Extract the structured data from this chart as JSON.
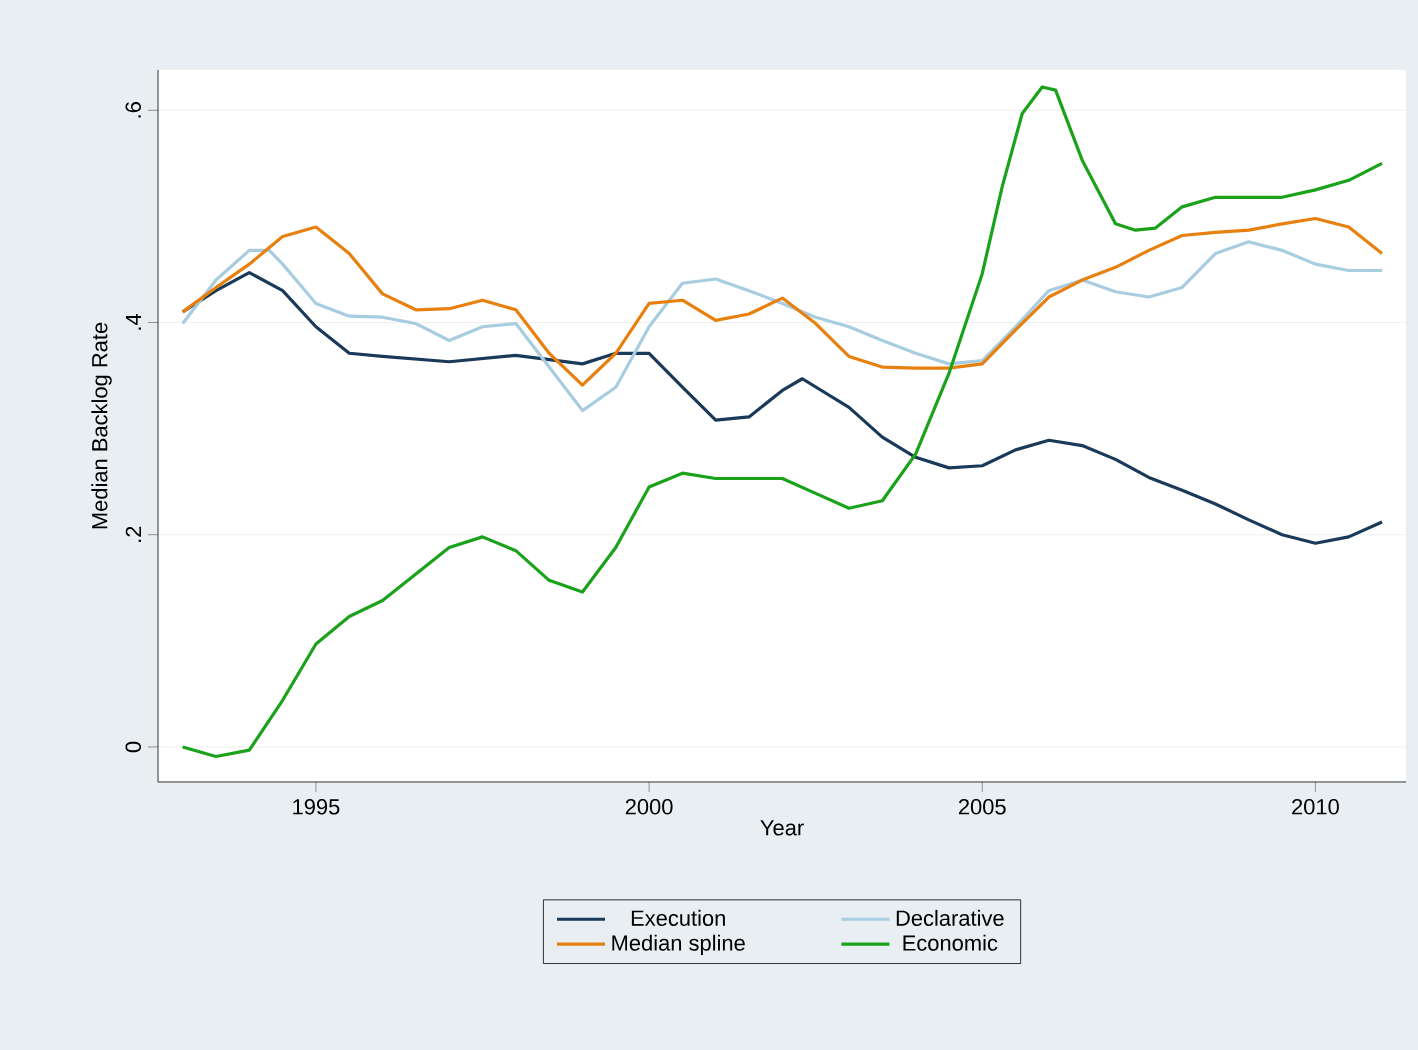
{
  "chart_data": {
    "type": "line",
    "xlabel": "Year",
    "ylabel": "Median Backlog Rate",
    "xlim": [
      1992.63,
      2011.36
    ],
    "ylim": [
      -0.033,
      0.638
    ],
    "xticks": [
      1995,
      2000,
      2005,
      2010
    ],
    "yticks": [
      {
        "value": 0,
        "label": "0"
      },
      {
        "value": 0.2,
        "label": ".2"
      },
      {
        "value": 0.4,
        "label": ".4"
      },
      {
        "value": 0.6,
        "label": ".6"
      }
    ],
    "grid": "y",
    "legend": "bottom",
    "line_style": "solid",
    "marker": "none",
    "series": [
      {
        "name": "Execution",
        "color": "#1a3a5a",
        "x": [
          1993,
          1993.5,
          1994,
          1994.5,
          1995,
          1995.5,
          1996,
          1997,
          1998,
          1999,
          1999.5,
          2000,
          2000.5,
          2001,
          2001.5,
          2002,
          2002.3,
          2003,
          2003.5,
          2004,
          2004.5,
          2005,
          2005.5,
          2006,
          2006.5,
          2007,
          2007.5,
          2008,
          2008.5,
          2009,
          2009.5,
          2010,
          2010.5,
          2011
        ],
        "values": [
          0.41,
          0.43,
          0.447,
          0.43,
          0.396,
          0.371,
          0.368,
          0.363,
          0.369,
          0.361,
          0.371,
          0.371,
          0.339,
          0.308,
          0.311,
          0.336,
          0.347,
          0.32,
          0.292,
          0.273,
          0.263,
          0.265,
          0.28,
          0.289,
          0.284,
          0.271,
          0.254,
          0.242,
          0.229,
          0.214,
          0.2,
          0.192,
          0.198,
          0.212
        ]
      },
      {
        "name": "Declarative",
        "color": "#a8cde0",
        "x": [
          1993,
          1993.5,
          1994,
          1994.3,
          1994.5,
          1995,
          1995.5,
          1996,
          1996.5,
          1997,
          1997.5,
          1998,
          1998.5,
          1999,
          1999.5,
          2000,
          2000.5,
          2001,
          2001.5,
          2002,
          2002.5,
          2003,
          2003.5,
          2004,
          2004.5,
          2005,
          2005.5,
          2006,
          2006.5,
          2007,
          2007.5,
          2008,
          2008.5,
          2009,
          2009.5,
          2010,
          2010.5,
          2011
        ],
        "values": [
          0.399,
          0.44,
          0.468,
          0.468,
          0.455,
          0.418,
          0.406,
          0.405,
          0.399,
          0.383,
          0.396,
          0.399,
          0.358,
          0.317,
          0.339,
          0.396,
          0.437,
          0.441,
          0.43,
          0.418,
          0.405,
          0.396,
          0.383,
          0.371,
          0.361,
          0.364,
          0.396,
          0.43,
          0.44,
          0.429,
          0.424,
          0.433,
          0.465,
          0.476,
          0.468,
          0.455,
          0.449,
          0.449
        ]
      },
      {
        "name": "Median spline",
        "color": "#e8800f",
        "x": [
          1993,
          1993.5,
          1994,
          1994.5,
          1995,
          1995.5,
          1996,
          1996.5,
          1997,
          1997.5,
          1998,
          1998.5,
          1999,
          1999.5,
          2000,
          2000.5,
          2001,
          2001.5,
          2002,
          2002.5,
          2003,
          2003.5,
          2004,
          2004.5,
          2005,
          2005.5,
          2006,
          2006.5,
          2007,
          2007.5,
          2008,
          2008.5,
          2009,
          2009.5,
          2010,
          2010.5,
          2011
        ],
        "values": [
          0.41,
          0.433,
          0.455,
          0.481,
          0.49,
          0.465,
          0.427,
          0.412,
          0.413,
          0.421,
          0.412,
          0.371,
          0.341,
          0.371,
          0.418,
          0.421,
          0.402,
          0.408,
          0.423,
          0.399,
          0.368,
          0.358,
          0.357,
          0.357,
          0.361,
          0.393,
          0.424,
          0.44,
          0.452,
          0.468,
          0.482,
          0.485,
          0.487,
          0.493,
          0.498,
          0.49,
          0.465
        ]
      },
      {
        "name": "Economic",
        "color": "#1aa21a",
        "x": [
          1993,
          1993.5,
          1994,
          1994.5,
          1995,
          1995.5,
          1996,
          1996.5,
          1997,
          1997.5,
          1998,
          1998.5,
          1999,
          1999.5,
          2000,
          2000.5,
          2001,
          2001.5,
          2002,
          2002.5,
          2003,
          2003.5,
          2004,
          2004.5,
          2005,
          2005.3,
          2005.6,
          2005.9,
          2006.1,
          2006.5,
          2007,
          2007.3,
          2007.6,
          2008,
          2008.5,
          2009,
          2009.5,
          2010,
          2010.5,
          2011
        ],
        "values": [
          0,
          -0.009,
          -0.003,
          0.044,
          0.097,
          0.123,
          0.138,
          0.163,
          0.188,
          0.198,
          0.185,
          0.157,
          0.146,
          0.188,
          0.245,
          0.258,
          0.253,
          0.253,
          0.253,
          0.239,
          0.225,
          0.232,
          0.276,
          0.352,
          0.446,
          0.528,
          0.597,
          0.622,
          0.619,
          0.553,
          0.493,
          0.487,
          0.489,
          0.509,
          0.518,
          0.518,
          0.518,
          0.525,
          0.534,
          0.55
        ]
      }
    ]
  }
}
